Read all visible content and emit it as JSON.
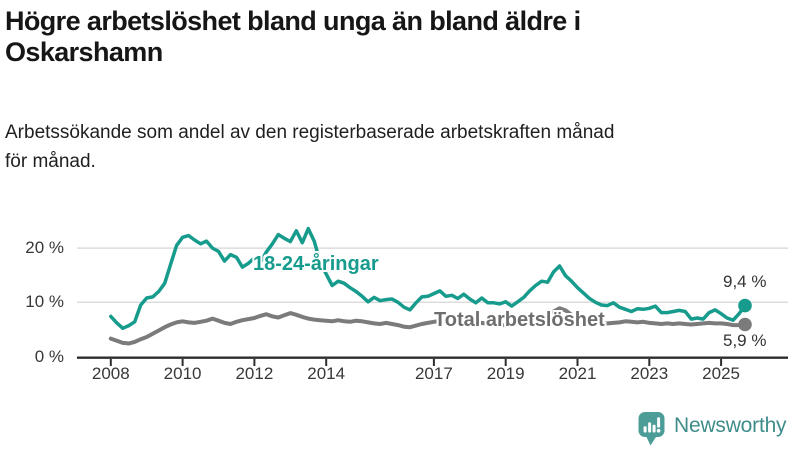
{
  "header": {
    "title_line1": "Högre arbetslöshet bland unga än bland äldre i",
    "title_line2": "Oskarshamn",
    "subtitle_line1": "Arbetssökande som andel av den registerbaserade arbetskraften månad",
    "subtitle_line2": "för månad."
  },
  "chart_data": {
    "type": "line",
    "x_start": 2008.0,
    "x_step_years": 0.166667,
    "xlim": [
      2008,
      2025.8
    ],
    "ylim": [
      0,
      24.8
    ],
    "grid": "horizontal",
    "x_ticks": [
      2008,
      2010,
      2012,
      2014,
      2017,
      2019,
      2021,
      2023,
      2025
    ],
    "y_ticks": [
      {
        "value": 0,
        "label": "0 %"
      },
      {
        "value": 10,
        "label": "10 %"
      },
      {
        "value": 20,
        "label": "20 %"
      }
    ],
    "series": [
      {
        "name": "18-24-åringar",
        "color": "#169B8D",
        "line_width": 3.5,
        "end_dot": true,
        "end_value": 9.4,
        "end_label": "9,4 %",
        "values": [
          7.4,
          6.2,
          5.2,
          5.7,
          6.4,
          9.5,
          10.8,
          11.0,
          12.0,
          13.5,
          17.0,
          20.5,
          22.0,
          22.3,
          21.5,
          20.8,
          21.3,
          20.0,
          19.4,
          17.6,
          18.8,
          18.3,
          16.5,
          17.2,
          18.2,
          17.3,
          19.3,
          20.8,
          22.5,
          21.8,
          21.2,
          23.2,
          21.0,
          23.6,
          21.3,
          17.4,
          15.2,
          13.1,
          13.9,
          13.5,
          12.7,
          12.0,
          11.1,
          10.1,
          10.9,
          10.3,
          10.5,
          10.6,
          10.0,
          9.1,
          8.6,
          9.9,
          11.0,
          11.1,
          11.6,
          12.1,
          11.1,
          11.3,
          10.7,
          11.5,
          10.6,
          9.9,
          10.8,
          9.9,
          9.9,
          9.7,
          10.1,
          9.3,
          10.1,
          10.9,
          12.1,
          13.1,
          13.9,
          13.7,
          15.6,
          16.7,
          14.9,
          13.9,
          12.7,
          11.7,
          10.7,
          10.0,
          9.5,
          9.4,
          9.9,
          9.1,
          8.7,
          8.3,
          8.8,
          8.7,
          8.9,
          9.3,
          8.1,
          8.1,
          8.3,
          8.5,
          8.3,
          6.9,
          7.1,
          6.9,
          8.1,
          8.6,
          7.9,
          7.1,
          6.7,
          7.9,
          9.4
        ]
      },
      {
        "name": "Total arbetslöshet",
        "color": "#7B7B7B",
        "line_width": 4,
        "end_dot": true,
        "end_value": 5.9,
        "end_label": "5,9 %",
        "values": [
          3.3,
          2.9,
          2.5,
          2.4,
          2.7,
          3.2,
          3.6,
          4.2,
          4.8,
          5.4,
          5.9,
          6.3,
          6.5,
          6.3,
          6.2,
          6.4,
          6.6,
          7.0,
          6.6,
          6.2,
          6.0,
          6.4,
          6.7,
          6.9,
          7.1,
          7.5,
          7.8,
          7.4,
          7.2,
          7.6,
          8.0,
          7.7,
          7.3,
          7.0,
          6.8,
          6.7,
          6.6,
          6.5,
          6.7,
          6.5,
          6.4,
          6.6,
          6.5,
          6.3,
          6.1,
          6.0,
          6.2,
          6.0,
          5.8,
          5.5,
          5.4,
          5.7,
          6.0,
          6.2,
          6.4,
          6.5,
          6.3,
          6.2,
          6.4,
          6.3,
          6.1,
          6.0,
          6.2,
          6.0,
          5.9,
          5.8,
          5.8,
          5.7,
          5.9,
          6.1,
          6.3,
          6.6,
          7.0,
          7.5,
          8.3,
          8.9,
          8.5,
          7.7,
          7.1,
          6.7,
          6.3,
          6.1,
          6.0,
          6.1,
          6.2,
          6.3,
          6.5,
          6.4,
          6.3,
          6.4,
          6.2,
          6.1,
          6.0,
          6.1,
          6.0,
          6.1,
          6.0,
          5.9,
          6.0,
          6.1,
          6.2,
          6.1,
          6.1,
          6.0,
          5.8,
          5.8,
          5.9
        ]
      }
    ],
    "colors": {
      "grid": "#dcdcdc",
      "axis": "#2d2d2d",
      "young": "#169B8D",
      "total": "#7B7B7B"
    }
  },
  "footer": {
    "brand": "Newsworthy",
    "logo_color": "#4C9C97",
    "brand_text_color": "#3F8D8A"
  }
}
